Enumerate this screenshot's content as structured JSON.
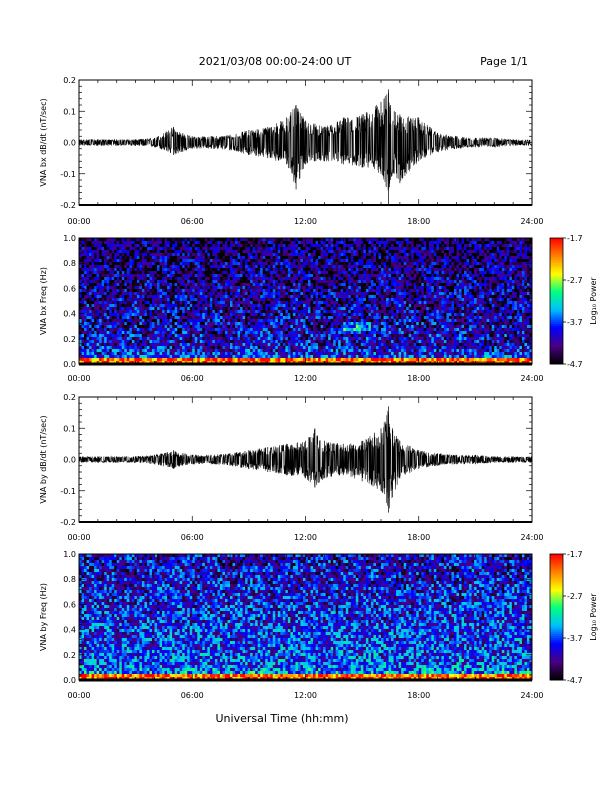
{
  "header": {
    "title": "2021/03/08  00:00-24:00 UT",
    "page": "Page 1/1"
  },
  "footer": {
    "xlabel": "Universal Time (hh:mm)"
  },
  "colorbar": {
    "label": "Log₁₀ Power",
    "ticks": [
      "-1.7",
      "-2.7",
      "-3.7",
      "-4.7"
    ],
    "tick_values": [
      -1.7,
      -2.7,
      -3.7,
      -4.7
    ],
    "range": [
      -4.7,
      -1.7
    ],
    "colormap": [
      "#000000",
      "#4b0082",
      "#0000ff",
      "#00bfff",
      "#00ff80",
      "#ffff00",
      "#ff8000",
      "#ff0000"
    ]
  },
  "chart_data": [
    {
      "type": "line",
      "ylabel": "VNA bx dB/dt (nT/sec)",
      "ylim": [
        -0.2,
        0.2
      ],
      "yticks": [
        -0.2,
        -0.1,
        0.0,
        0.1,
        0.2
      ],
      "ytick_labels": [
        "-0.2",
        "-0.1",
        "0.0",
        "0.1",
        "0.2"
      ],
      "xlim": [
        "00:00",
        "24:00"
      ],
      "xtick_labels": [
        "00:00",
        "06:00",
        "12:00",
        "18:00",
        "24:00"
      ],
      "series": [
        {
          "color": "#000000",
          "x_hours": [
            0,
            1,
            2,
            3,
            4,
            5,
            5.5,
            6,
            7,
            8,
            9,
            10,
            11,
            11.5,
            12,
            12.5,
            13,
            14,
            15,
            16,
            16.4,
            16.5,
            16.7,
            17,
            18,
            19,
            20,
            21,
            22,
            23,
            24
          ],
          "envelope_max": [
            0.01,
            0.01,
            0.01,
            0.01,
            0.015,
            0.05,
            0.03,
            0.02,
            0.02,
            0.025,
            0.04,
            0.05,
            0.08,
            0.12,
            0.07,
            0.06,
            0.05,
            0.08,
            0.09,
            0.13,
            0.17,
            0.12,
            0.1,
            0.09,
            0.08,
            0.03,
            0.02,
            0.015,
            0.015,
            0.01,
            0.01
          ],
          "envelope_min": [
            -0.01,
            -0.01,
            -0.01,
            -0.01,
            -0.015,
            -0.04,
            -0.03,
            -0.02,
            -0.02,
            -0.025,
            -0.04,
            -0.05,
            -0.07,
            -0.15,
            -0.07,
            -0.06,
            -0.06,
            -0.07,
            -0.08,
            -0.1,
            -0.2,
            -0.12,
            -0.1,
            -0.13,
            -0.06,
            -0.03,
            -0.02,
            -0.015,
            -0.015,
            -0.01,
            -0.01
          ]
        }
      ]
    },
    {
      "type": "heatmap",
      "ylabel": "VNA bx Freq (Hz)",
      "ylim": [
        0.0,
        1.0
      ],
      "yticks": [
        0.0,
        0.2,
        0.4,
        0.6,
        0.8,
        1.0
      ],
      "ytick_labels": [
        "0.0",
        "0.2",
        "0.4",
        "0.6",
        "0.8",
        "1.0"
      ],
      "xlim": [
        "00:00",
        "24:00"
      ],
      "xtick_labels": [
        "00:00",
        "06:00",
        "12:00",
        "18:00",
        "24:00"
      ],
      "zlim": [
        -4.7,
        -1.7
      ],
      "features": [
        {
          "freq_hz": [
            0.0,
            0.04
          ],
          "time_hours": [
            0,
            24
          ],
          "log_power": -2.3
        },
        {
          "freq_hz": [
            0.26,
            0.34
          ],
          "time_hours": [
            14.0,
            15.5
          ],
          "log_power": -3.2
        },
        {
          "freq_hz": [
            0.0,
            1.0
          ],
          "time_hours": [
            0,
            24
          ],
          "log_power": -3.9
        }
      ]
    },
    {
      "type": "line",
      "ylabel": "VNA by dB/dt (nT/sec)",
      "ylim": [
        -0.2,
        0.2
      ],
      "yticks": [
        -0.2,
        -0.1,
        0.0,
        0.1,
        0.2
      ],
      "ytick_labels": [
        "-0.2",
        "-0.1",
        "0.0",
        "0.1",
        "0.2"
      ],
      "xlim": [
        "00:00",
        "24:00"
      ],
      "xtick_labels": [
        "00:00",
        "06:00",
        "12:00",
        "18:00",
        "24:00"
      ],
      "series": [
        {
          "color": "#000000",
          "x_hours": [
            0,
            1,
            2,
            3,
            4,
            5,
            5.5,
            6,
            7,
            8,
            9,
            10,
            11,
            12,
            12.5,
            13,
            14,
            15,
            16,
            16.4,
            16.6,
            17,
            18,
            19,
            20,
            21,
            22,
            23,
            24
          ],
          "envelope_max": [
            0.01,
            0.01,
            0.01,
            0.01,
            0.015,
            0.03,
            0.02,
            0.015,
            0.015,
            0.02,
            0.03,
            0.04,
            0.05,
            0.06,
            0.1,
            0.06,
            0.05,
            0.06,
            0.1,
            0.17,
            0.1,
            0.06,
            0.03,
            0.02,
            0.015,
            0.015,
            0.01,
            0.01,
            0.01
          ],
          "envelope_min": [
            -0.01,
            -0.01,
            -0.01,
            -0.01,
            -0.015,
            -0.03,
            -0.02,
            -0.015,
            -0.015,
            -0.02,
            -0.03,
            -0.04,
            -0.05,
            -0.06,
            -0.09,
            -0.06,
            -0.05,
            -0.07,
            -0.1,
            -0.17,
            -0.12,
            -0.06,
            -0.03,
            -0.02,
            -0.015,
            -0.015,
            -0.01,
            -0.01,
            -0.01
          ]
        }
      ]
    },
    {
      "type": "heatmap",
      "ylabel": "VNA by Freq (Hz)",
      "ylim": [
        0.0,
        1.0
      ],
      "yticks": [
        0.0,
        0.2,
        0.4,
        0.6,
        0.8,
        1.0
      ],
      "ytick_labels": [
        "0.0",
        "0.2",
        "0.4",
        "0.6",
        "0.8",
        "1.0"
      ],
      "xlim": [
        "00:00",
        "24:00"
      ],
      "xtick_labels": [
        "00:00",
        "06:00",
        "12:00",
        "18:00",
        "24:00"
      ],
      "zlim": [
        -4.7,
        -1.7
      ],
      "features": [
        {
          "freq_hz": [
            0.0,
            0.05
          ],
          "time_hours": [
            0,
            24
          ],
          "log_power": -2.3
        },
        {
          "freq_hz": [
            0.0,
            1.0
          ],
          "time_hours": [
            0,
            24
          ],
          "log_power": -3.6
        }
      ]
    }
  ]
}
